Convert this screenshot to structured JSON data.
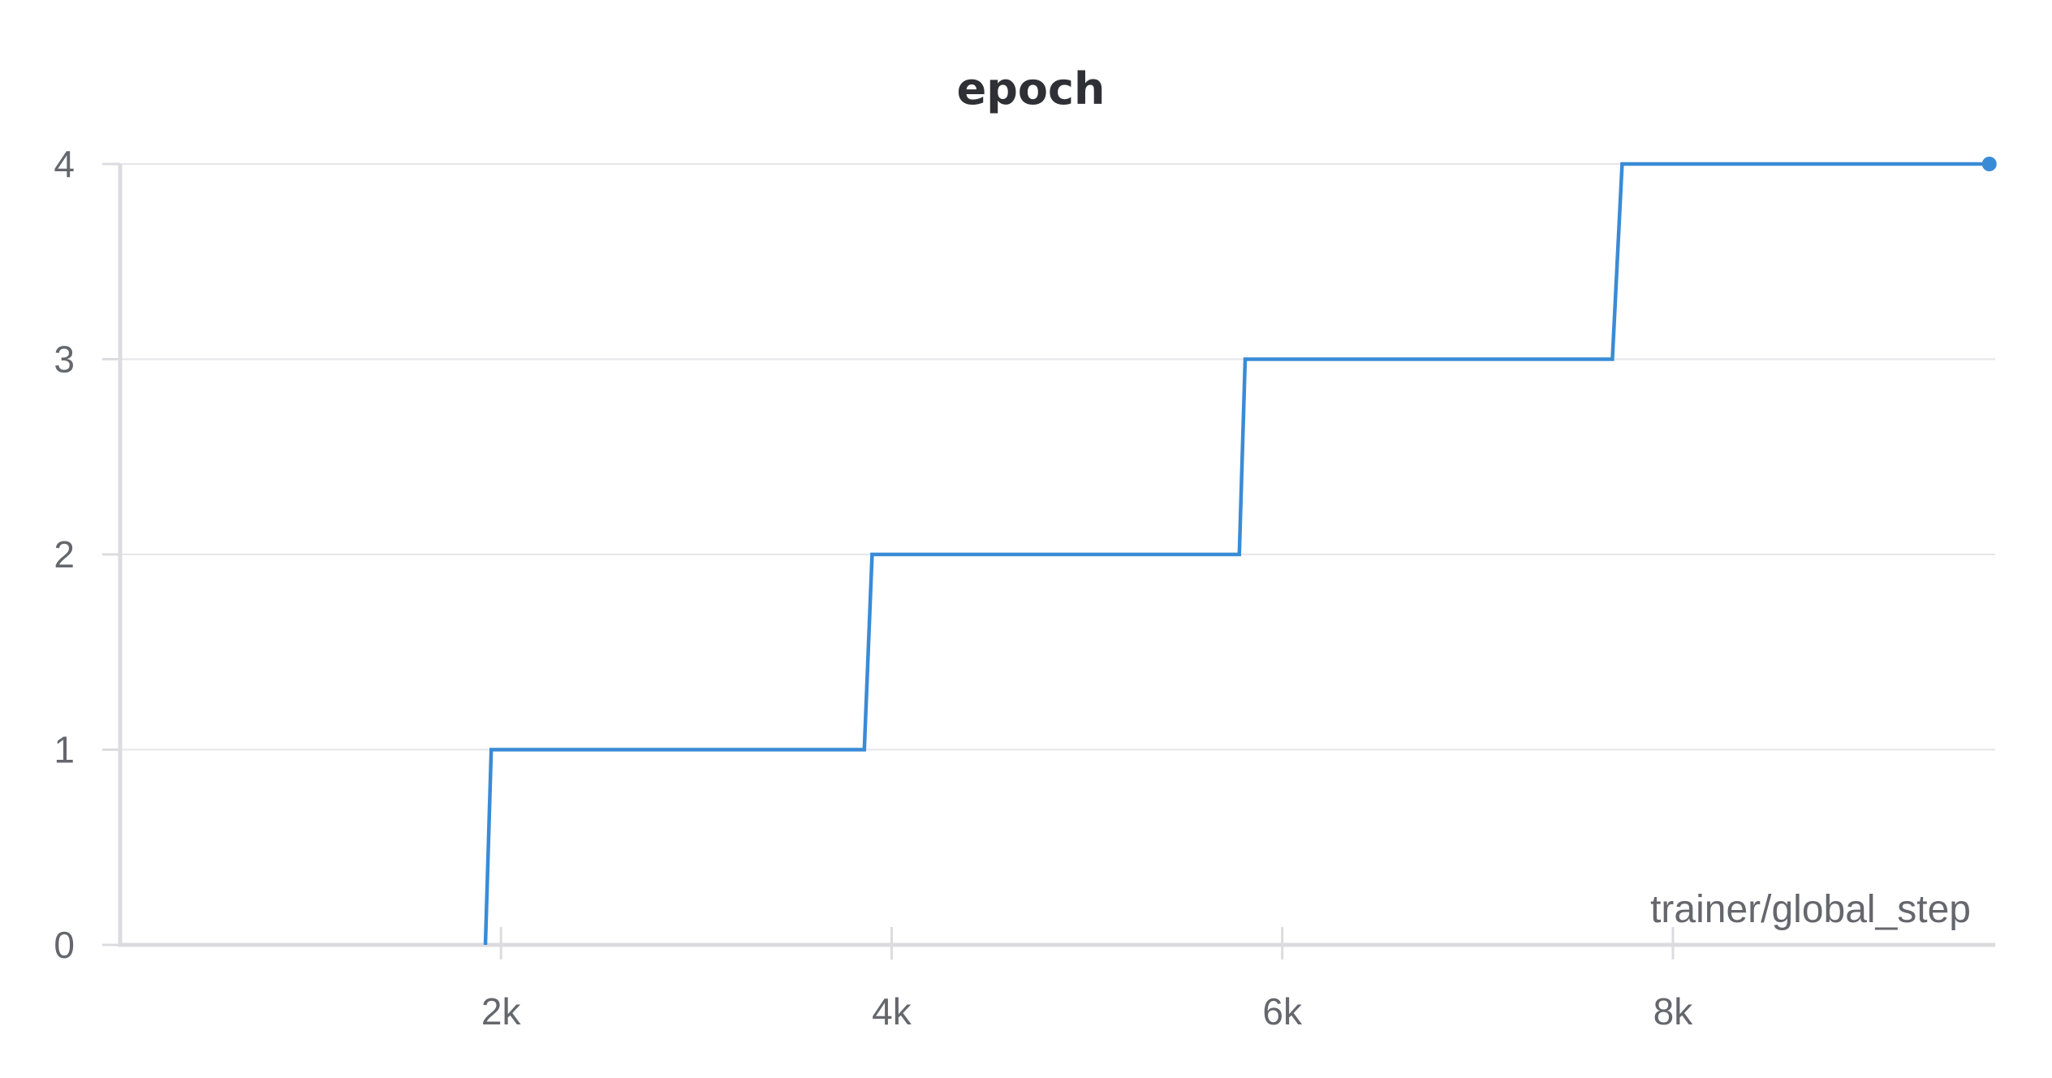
{
  "chart_data": {
    "type": "line",
    "title": "epoch",
    "xlabel": "trainer/global_step",
    "ylabel": "",
    "x_ticks": [
      2000,
      4000,
      6000,
      8000
    ],
    "x_tick_labels": [
      "2k",
      "4k",
      "6k",
      "8k"
    ],
    "y_ticks": [
      0,
      1,
      2,
      3,
      4
    ],
    "y_tick_labels": [
      "0",
      "1",
      "2",
      "3",
      "4"
    ],
    "xlim": [
      50,
      9650
    ],
    "ylim": [
      0,
      4
    ],
    "grid": true,
    "line_color": "#3a8bd6",
    "series": [
      {
        "x": [
          1920,
          1950,
          3860,
          3900,
          5780,
          5810,
          7690,
          7740,
          9620
        ],
        "y": [
          0,
          1,
          1,
          2,
          2,
          3,
          3,
          4,
          4
        ]
      }
    ]
  }
}
